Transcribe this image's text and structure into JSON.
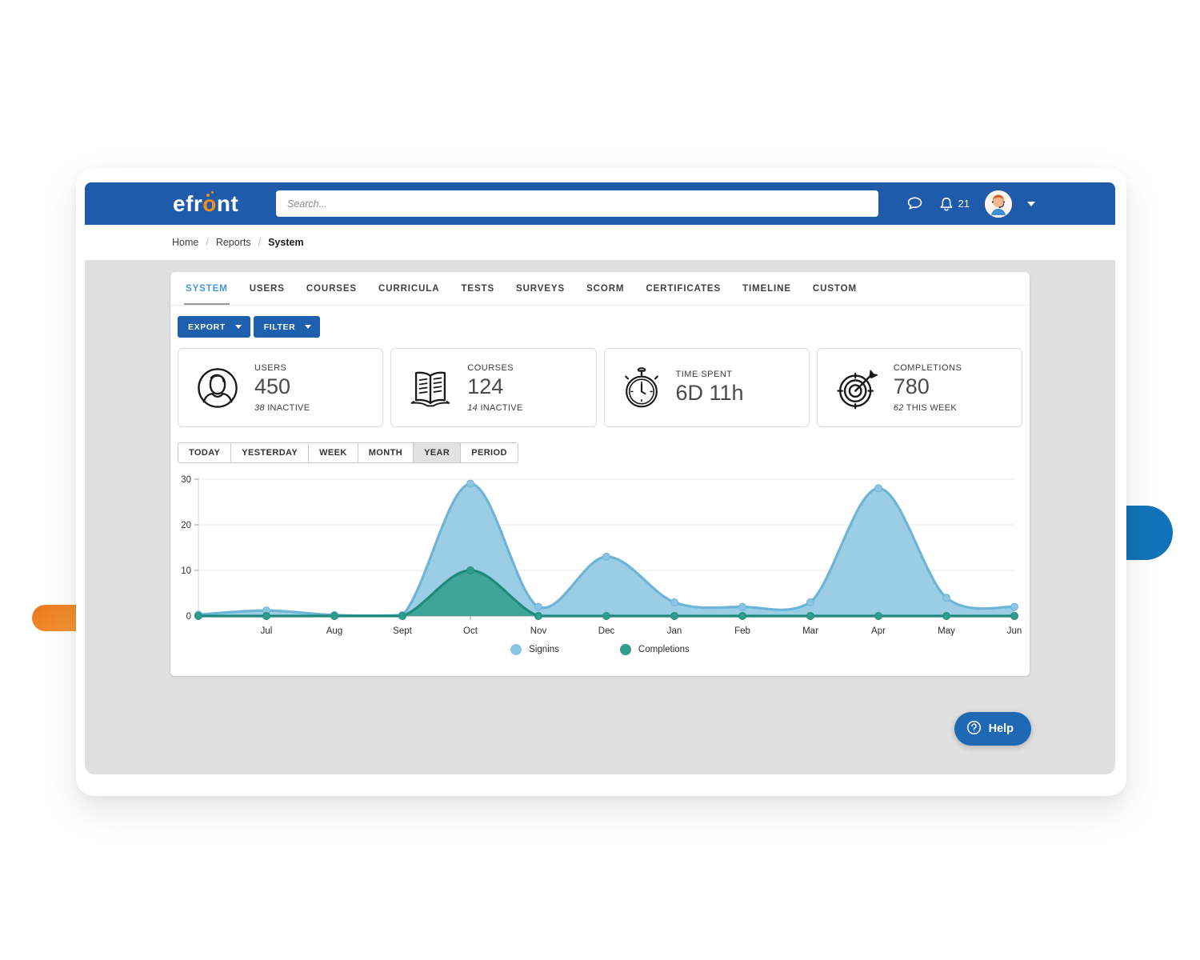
{
  "topbar": {
    "logo_pre": "efr",
    "logo_o": "o",
    "logo_post": "nt",
    "search_placeholder": "Search...",
    "notifications_count": "21"
  },
  "breadcrumb": {
    "items": [
      "Home",
      "Reports",
      "System"
    ]
  },
  "tabs": [
    {
      "label": "SYSTEM",
      "active": true
    },
    {
      "label": "USERS",
      "active": false
    },
    {
      "label": "COURSES",
      "active": false
    },
    {
      "label": "CURRICULA",
      "active": false
    },
    {
      "label": "TESTS",
      "active": false
    },
    {
      "label": "SURVEYS",
      "active": false
    },
    {
      "label": "SCORM",
      "active": false
    },
    {
      "label": "CERTIFICATES",
      "active": false
    },
    {
      "label": "TIMELINE",
      "active": false
    },
    {
      "label": "CUSTOM",
      "active": false
    }
  ],
  "toolbar": {
    "export_label": "EXPORT",
    "filter_label": "FILTER"
  },
  "stats": [
    {
      "icon": "user-icon",
      "label": "USERS",
      "value": "450",
      "sub_number": "38",
      "sub_text": "INACTIVE"
    },
    {
      "icon": "book-icon",
      "label": "COURSES",
      "value": "124",
      "sub_number": "14",
      "sub_text": "INACTIVE"
    },
    {
      "icon": "stopwatch-icon",
      "label": "TIME SPENT",
      "value": "6D 11h",
      "sub_number": "",
      "sub_text": ""
    },
    {
      "icon": "target-icon",
      "label": "COMPLETIONS",
      "value": "780",
      "sub_number": "62",
      "sub_text": "THIS WEEK"
    }
  ],
  "range_buttons": [
    {
      "label": "TODAY",
      "active": false
    },
    {
      "label": "YESTERDAY",
      "active": false
    },
    {
      "label": "WEEK",
      "active": false
    },
    {
      "label": "MONTH",
      "active": false
    },
    {
      "label": "YEAR",
      "active": true
    },
    {
      "label": "PERIOD",
      "active": false
    }
  ],
  "chart_data": {
    "type": "area",
    "title": "",
    "x_labels": [
      "Jul",
      "Aug",
      "Sept",
      "Oct",
      "Nov",
      "Dec",
      "Jan",
      "Feb",
      "Mar",
      "Apr",
      "May",
      "Jun"
    ],
    "note": "13 points per series: first point sits on the left axis edge before the Jul label",
    "y_ticks": [
      0,
      10,
      20,
      30
    ],
    "ylim": [
      0,
      30
    ],
    "grid": true,
    "legend_position": "bottom-center",
    "series": [
      {
        "name": "Signins",
        "fill": "#8ac6e1",
        "line": "#6db4d6",
        "values": [
          0.3,
          1.2,
          0.2,
          0.2,
          29,
          2,
          13,
          3,
          2,
          3,
          28,
          4,
          2
        ]
      },
      {
        "name": "Completions",
        "fill": "#2f9c8d",
        "line": "#1e8a7b",
        "values": [
          0,
          0,
          0,
          0,
          10,
          0,
          0,
          0,
          0,
          0,
          0,
          0,
          0
        ]
      }
    ]
  },
  "help": {
    "label": "Help"
  },
  "colors": {
    "topbar": "#1f5baa",
    "button_blue": "#1e5fae",
    "tab_active": "#4597dc",
    "help_button": "#1e68b4",
    "content_gray": "#e0e0e0",
    "decor_blue": "#1173b9",
    "decor_orange": "#ec751c",
    "logo_orange": "#f68b1f"
  }
}
